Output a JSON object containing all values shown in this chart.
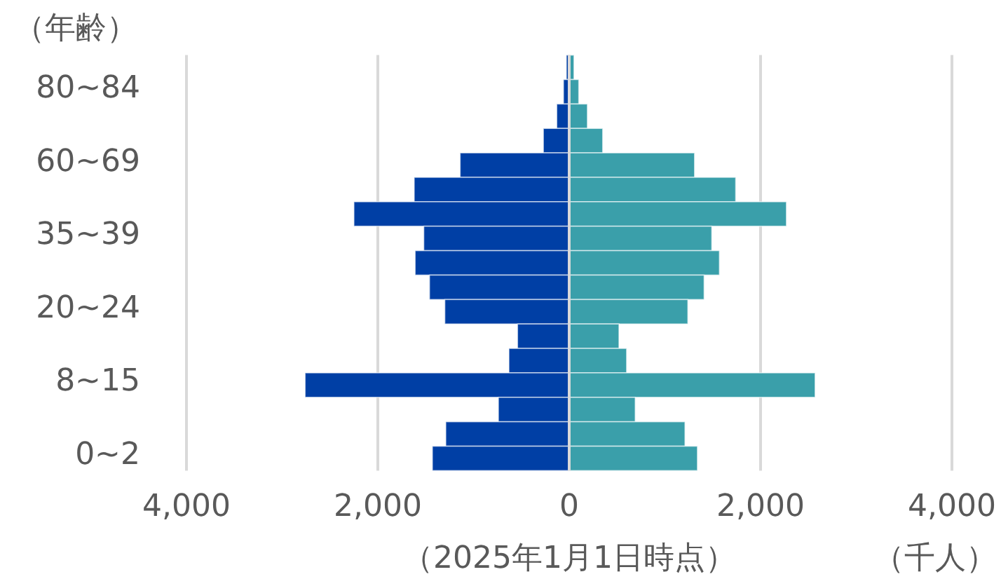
{
  "chart_data": {
    "type": "bar",
    "orientation": "horizontal",
    "stacked": true,
    "ylabel": "（年齢）",
    "xlabel": "（千人）",
    "annotations": [
      "（2025年1月1日時点）"
    ],
    "categories": [
      null,
      "80~84",
      null,
      null,
      "60~69",
      null,
      null,
      "35~39",
      null,
      null,
      "20~24",
      null,
      null,
      "8~15",
      null,
      null,
      "0~2"
    ],
    "series": [
      {
        "color": "#003fa5",
        "values": [
          -30,
          -60,
          -130,
          -270,
          -1140,
          -1620,
          -2250,
          -1520,
          -1610,
          -1460,
          -1300,
          -540,
          -630,
          -2760,
          -740,
          -1290,
          -1430
        ]
      },
      {
        "color": "#3a9faa",
        "values": [
          50,
          100,
          190,
          350,
          1310,
          1740,
          2270,
          1490,
          1570,
          1410,
          1240,
          520,
          600,
          2570,
          690,
          1210,
          1340
        ]
      }
    ],
    "xlim": [
      -4000,
      4000
    ],
    "xticks": [
      {
        "value": -4000,
        "label": "4,000"
      },
      {
        "value": -2000,
        "label": "2,000"
      },
      0,
      {
        "value": 2000,
        "label": "2,000"
      },
      {
        "value": 4000,
        "label": "4,000"
      }
    ],
    "grid": "x"
  }
}
